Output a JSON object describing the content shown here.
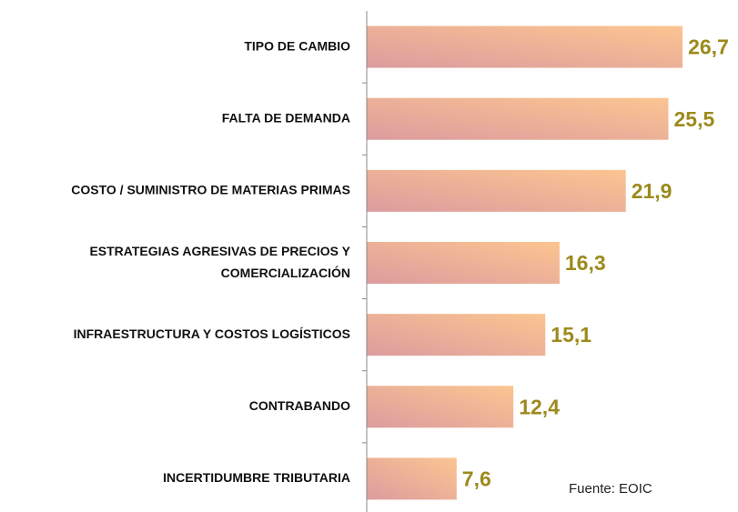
{
  "chart_data": {
    "type": "barh",
    "categories": [
      "TIPO DE CAMBIO",
      "FALTA DE DEMANDA",
      "COSTO / SUMINISTRO DE MATERIAS PRIMAS",
      "ESTRATEGIAS AGRESIVAS DE PRECIOS Y\nCOMERCIALIZACIÓN",
      "INFRAESTRUCTURA Y COSTOS LOGÍSTICOS",
      "CONTRABANDO",
      "INCERTIDUMBRE TRIBUTARIA"
    ],
    "values": [
      26.7,
      25.5,
      21.9,
      16.3,
      15.1,
      12.4,
      7.6
    ],
    "value_labels": [
      "26,7",
      "25,5",
      "21,9",
      "16,3",
      "15,1",
      "12,4",
      "7,6"
    ],
    "xlim": [
      0,
      30
    ],
    "annotation": "Fuente:  EOIC"
  }
}
